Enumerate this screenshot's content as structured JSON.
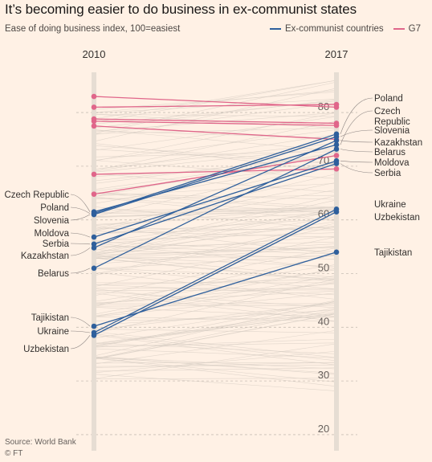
{
  "header": {
    "title": "It’s becoming easier to do business in ex-communist states",
    "subtitle": "Ease of doing business index, 100=easiest"
  },
  "legend": [
    {
      "label": "Ex-communist countries",
      "color": "#2e5f9c"
    },
    {
      "label": "G7",
      "color": "#e0668a"
    }
  ],
  "footer": {
    "source": "Source: World Bank",
    "credit": "© FT"
  },
  "chart_data": {
    "type": "slope",
    "x": [
      "2010",
      "2017"
    ],
    "ylim": [
      17,
      86
    ],
    "yticks": [
      20,
      30,
      40,
      50,
      60,
      70,
      80
    ],
    "grid": true,
    "legend_position": "top-right",
    "series": [
      {
        "name": "Czech Republic",
        "group": "ex-communist",
        "values": [
          61.5,
          74.0
        ]
      },
      {
        "name": "Poland",
        "group": "ex-communist",
        "values": [
          61.2,
          76.0
        ]
      },
      {
        "name": "Slovenia",
        "group": "ex-communist",
        "values": [
          61.0,
          75.5
        ]
      },
      {
        "name": "Moldova",
        "group": "ex-communist",
        "values": [
          56.8,
          71.0
        ]
      },
      {
        "name": "Serbia",
        "group": "ex-communist",
        "values": [
          55.5,
          70.5
        ]
      },
      {
        "name": "Kazakhstan",
        "group": "ex-communist",
        "values": [
          54.8,
          74.8
        ]
      },
      {
        "name": "Belarus",
        "group": "ex-communist",
        "values": [
          51.0,
          73.2
        ]
      },
      {
        "name": "Tajikistan",
        "group": "ex-communist",
        "values": [
          40.2,
          54.0
        ]
      },
      {
        "name": "Ukraine",
        "group": "ex-communist",
        "values": [
          39.0,
          62.0
        ]
      },
      {
        "name": "Uzbekistan",
        "group": "ex-communist",
        "values": [
          38.5,
          61.5
        ]
      },
      {
        "name": "",
        "group": "G7",
        "values": [
          83.0,
          81.0
        ]
      },
      {
        "name": "",
        "group": "G7",
        "values": [
          81.0,
          81.5
        ]
      },
      {
        "name": "",
        "group": "G7",
        "values": [
          78.8,
          78.0
        ]
      },
      {
        "name": "",
        "group": "G7",
        "values": [
          78.4,
          77.6
        ]
      },
      {
        "name": "",
        "group": "G7",
        "values": [
          77.5,
          75.0
        ]
      },
      {
        "name": "",
        "group": "G7",
        "values": [
          68.5,
          69.5
        ]
      },
      {
        "name": "",
        "group": "G7",
        "values": [
          64.8,
          72.0
        ]
      }
    ]
  }
}
